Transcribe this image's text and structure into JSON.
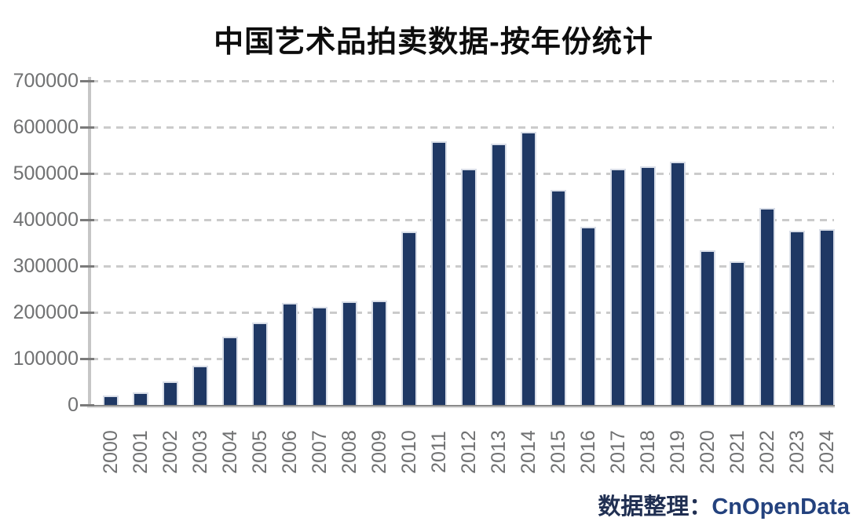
{
  "header": {
    "title": "中国艺术品拍卖数据-按年份统计"
  },
  "source": {
    "prefix": "数据整理：",
    "brand": "CnOpenData"
  },
  "colors": {
    "bar": "#1f3864",
    "bar_border": "#d9dee8",
    "title": "#0d0d0d",
    "axis_label": "#707172",
    "gridline": "#cbcbcb",
    "axis_line": "#c6c6c6",
    "source_text": "#1f3864"
  },
  "chart_data": {
    "type": "bar",
    "title": "中国艺术品拍卖数据-按年份统计",
    "xlabel": "",
    "ylabel": "",
    "categories": [
      "2000",
      "2001",
      "2002",
      "2003",
      "2004",
      "2005",
      "2006",
      "2007",
      "2008",
      "2009",
      "2010",
      "2011",
      "2012",
      "2013",
      "2014",
      "2015",
      "2016",
      "2017",
      "2018",
      "2019",
      "2020",
      "2021",
      "2022",
      "2023",
      "2024"
    ],
    "values": [
      20000,
      27000,
      50000,
      85000,
      147000,
      178000,
      221000,
      212000,
      223000,
      226000,
      375000,
      570000,
      510000,
      565000,
      590000,
      464000,
      385000,
      510000,
      515000,
      525000,
      334000,
      311000,
      425000,
      376000,
      379000
    ],
    "ylim": [
      0,
      700000
    ],
    "yticks": [
      0,
      100000,
      200000,
      300000,
      400000,
      500000,
      600000,
      700000
    ],
    "grid": "horizontal-dashed",
    "legend": null,
    "annotation": "数据整理：CnOpenData"
  }
}
